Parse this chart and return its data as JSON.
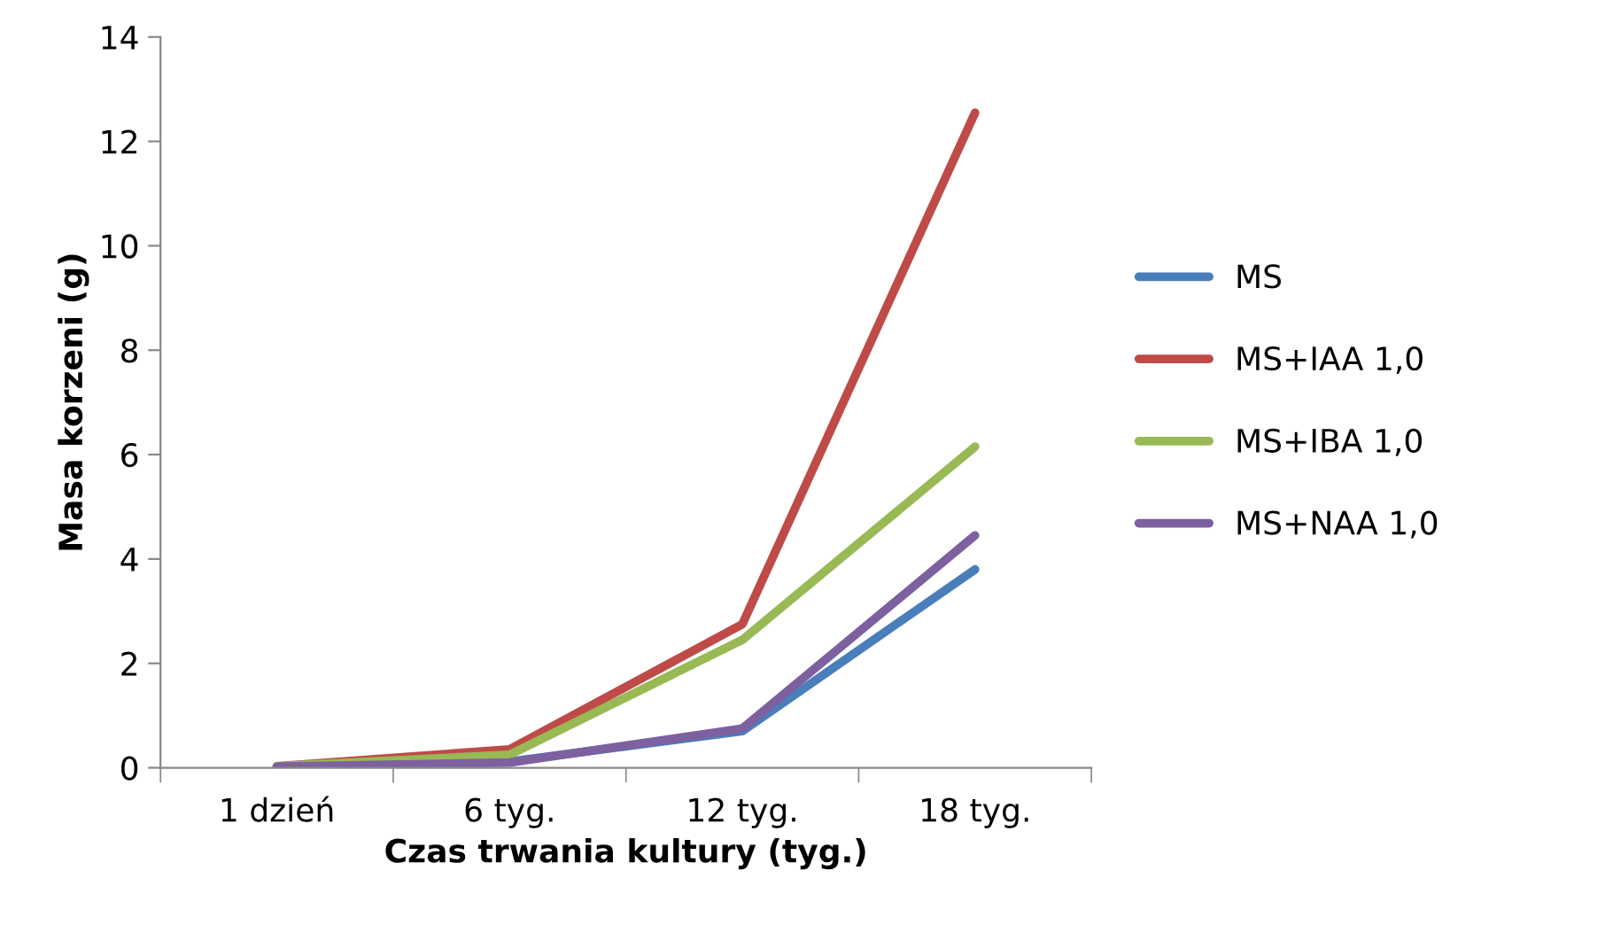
{
  "chart_data": {
    "type": "line",
    "xlabel": "Czas trwania kultury (tyg.)",
    "ylabel": "Masa korzeni (g)",
    "categories": [
      "1 dzień",
      "6 tyg.",
      "12 tyg.",
      "18 tyg."
    ],
    "series": [
      {
        "name": "MS",
        "color": "#4a7ebb",
        "values": [
          0.02,
          0.12,
          0.7,
          3.8
        ]
      },
      {
        "name": "MS+IAA 1,0",
        "color": "#be4b48",
        "values": [
          0.03,
          0.35,
          2.75,
          12.55
        ]
      },
      {
        "name": "MS+IBA 1,0",
        "color": "#98b954",
        "values": [
          0.03,
          0.25,
          2.45,
          6.15
        ]
      },
      {
        "name": "MS+NAA 1,0",
        "color": "#7d60a0",
        "values": [
          0.02,
          0.1,
          0.75,
          4.45
        ]
      }
    ],
    "ylim": [
      0,
      14
    ],
    "yticks": [
      0,
      2,
      4,
      6,
      8,
      10,
      12,
      14
    ],
    "grid": false,
    "legend": "right",
    "marker": "none",
    "line_style": "solid"
  }
}
